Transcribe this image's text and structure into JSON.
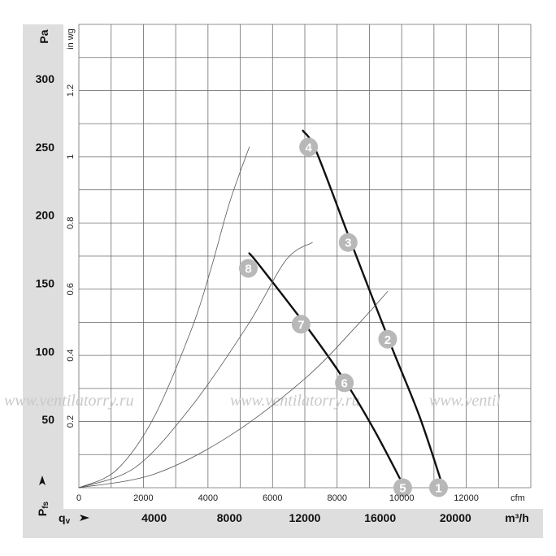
{
  "chart_data": {
    "type": "line",
    "y_left": {
      "unit": "Pa",
      "ticks": [
        "50",
        "100",
        "150",
        "200",
        "250",
        "300"
      ],
      "range": [
        0,
        340
      ]
    },
    "y_inner": {
      "unit": "in wg",
      "ticks": [
        "0.2",
        "0.4",
        "0.6",
        "0.8",
        "1",
        "1.2"
      ]
    },
    "x_inner": {
      "unit": "cfm",
      "ticks": [
        "0",
        "2000",
        "4000",
        "6000",
        "8000",
        "10000",
        "12000"
      ]
    },
    "x_bottom": {
      "unit": "m³/h",
      "ticks": [
        "4000",
        "8000",
        "12000",
        "16000",
        "20000"
      ],
      "range": [
        0,
        24000
      ]
    },
    "axis_symbols": {
      "pressure": "P",
      "pressure_sub": "fs",
      "flow": "q",
      "flow_sub": "v"
    },
    "watermark": [
      "www.ventilatorry.ru",
      "www.ventilatorry.ru",
      "www.ventil"
    ],
    "series": [
      {
        "kind": "fan-curve",
        "points": [
          [
            11900,
            262
          ],
          [
            12600,
            247
          ],
          [
            14400,
            182
          ],
          [
            16500,
            107
          ],
          [
            18100,
            52
          ],
          [
            19350,
            0
          ]
        ]
      },
      {
        "kind": "fan-curve",
        "points": [
          [
            9050,
            172
          ],
          [
            9600,
            163
          ],
          [
            12000,
            120
          ],
          [
            14100,
            79
          ],
          [
            15700,
            42
          ],
          [
            17300,
            0
          ]
        ]
      },
      {
        "kind": "system-curve",
        "points": [
          [
            0,
            0
          ],
          [
            2000,
            13
          ],
          [
            4000,
            52
          ],
          [
            6000,
            117
          ],
          [
            7000,
            160
          ],
          [
            8000,
            209
          ],
          [
            9050,
            250
          ]
        ]
      },
      {
        "kind": "system-curve",
        "points": [
          [
            0,
            0
          ],
          [
            3000,
            15
          ],
          [
            6000,
            60
          ],
          [
            9000,
            120
          ],
          [
            11000,
            167
          ],
          [
            12400,
            180
          ]
        ]
      },
      {
        "kind": "system-curve",
        "points": [
          [
            0,
            0
          ],
          [
            4000,
            10
          ],
          [
            8000,
            38
          ],
          [
            12000,
            80
          ],
          [
            14700,
            118
          ],
          [
            16400,
            144
          ]
        ]
      }
    ],
    "points": [
      {
        "label": "1",
        "x": 19100,
        "y": 0
      },
      {
        "label": "2",
        "x": 16400,
        "y": 109
      },
      {
        "label": "3",
        "x": 14300,
        "y": 180
      },
      {
        "label": "4",
        "x": 12200,
        "y": 250
      },
      {
        "label": "5",
        "x": 17200,
        "y": 0
      },
      {
        "label": "6",
        "x": 14100,
        "y": 77
      },
      {
        "label": "7",
        "x": 11800,
        "y": 120
      },
      {
        "label": "8",
        "x": 9000,
        "y": 161
      }
    ]
  }
}
